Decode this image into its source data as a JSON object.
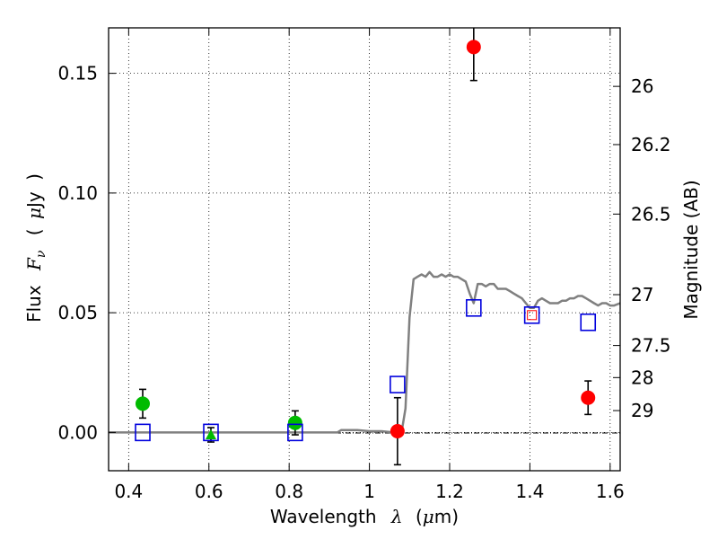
{
  "chart_data": {
    "type": "scatter",
    "xlabel_parts": [
      "Wavelength",
      "λ",
      "(",
      "μ",
      "m)"
    ],
    "ylabel_parts": [
      "Flux",
      "F",
      "ν",
      "(",
      "μ",
      "Jy",
      ")"
    ],
    "y2label": "Magnitude (AB)",
    "xlim": [
      0.35,
      1.625
    ],
    "ylim": [
      -0.016,
      0.169
    ],
    "grid": true,
    "x_ticks": [
      {
        "value": 0.4,
        "label": "0.4"
      },
      {
        "value": 0.6,
        "label": "0.6"
      },
      {
        "value": 0.8,
        "label": "0.8"
      },
      {
        "value": 1.0,
        "label": "1"
      },
      {
        "value": 1.2,
        "label": "1.2"
      },
      {
        "value": 1.4,
        "label": "1.4"
      },
      {
        "value": 1.6,
        "label": "1.6"
      }
    ],
    "y_ticks": [
      {
        "value": 0.0,
        "label": "0.00"
      },
      {
        "value": 0.05,
        "label": "0.05"
      },
      {
        "value": 0.1,
        "label": "0.10"
      },
      {
        "value": 0.15,
        "label": "0.15"
      }
    ],
    "y2_ticks": [
      {
        "mag": 26,
        "label": "26"
      },
      {
        "mag": 26.2,
        "label": "26.2"
      },
      {
        "mag": 26.5,
        "label": "26.5"
      },
      {
        "mag": 27,
        "label": "27"
      },
      {
        "mag": 27.5,
        "label": "27.5"
      },
      {
        "mag": 28,
        "label": "28"
      },
      {
        "mag": 29,
        "label": "29"
      }
    ],
    "model_sed": {
      "color": "#808080",
      "x": [
        0.35,
        0.5,
        0.6,
        0.7,
        0.8,
        0.9,
        0.92,
        0.93,
        0.95,
        0.97,
        1.0,
        1.03,
        1.06,
        1.08,
        1.09,
        1.1,
        1.11,
        1.12,
        1.13,
        1.14,
        1.15,
        1.16,
        1.17,
        1.18,
        1.19,
        1.2,
        1.21,
        1.22,
        1.23,
        1.24,
        1.25,
        1.26,
        1.27,
        1.28,
        1.29,
        1.3,
        1.31,
        1.32,
        1.33,
        1.34,
        1.35,
        1.36,
        1.37,
        1.38,
        1.39,
        1.4,
        1.41,
        1.42,
        1.43,
        1.44,
        1.45,
        1.46,
        1.47,
        1.48,
        1.49,
        1.5,
        1.51,
        1.52,
        1.53,
        1.54,
        1.55,
        1.56,
        1.57,
        1.58,
        1.59,
        1.6,
        1.61,
        1.625
      ],
      "y": [
        0.0,
        0.0,
        0.0,
        0.0,
        0.0,
        0.0,
        0.0,
        0.001,
        0.001,
        0.001,
        0.0005,
        0.0005,
        0.0,
        0.0,
        0.01,
        0.048,
        0.064,
        0.065,
        0.066,
        0.065,
        0.067,
        0.065,
        0.065,
        0.066,
        0.065,
        0.066,
        0.065,
        0.065,
        0.064,
        0.063,
        0.058,
        0.054,
        0.062,
        0.062,
        0.061,
        0.062,
        0.062,
        0.06,
        0.06,
        0.06,
        0.059,
        0.058,
        0.057,
        0.056,
        0.054,
        0.052,
        0.052,
        0.055,
        0.056,
        0.055,
        0.054,
        0.054,
        0.054,
        0.055,
        0.055,
        0.056,
        0.056,
        0.057,
        0.057,
        0.056,
        0.055,
        0.054,
        0.053,
        0.054,
        0.054,
        0.053,
        0.053,
        0.054
      ]
    },
    "series": [
      {
        "marker": "circle",
        "color": "#00bb00",
        "points": [
          {
            "x": 0.435,
            "y": 0.012,
            "yerr": 0.006
          },
          {
            "x": 0.815,
            "y": 0.004,
            "yerr": 0.005
          }
        ]
      },
      {
        "marker": "triangle",
        "color": "#00bb00",
        "points": [
          {
            "x": 0.605,
            "y": -0.001,
            "yerr": 0.003
          }
        ]
      },
      {
        "marker": "circle",
        "color": "#ff0000",
        "points": [
          {
            "x": 1.07,
            "y": 0.0005,
            "yerr": 0.014
          },
          {
            "x": 1.26,
            "y": 0.161,
            "yerr": 0.014
          },
          {
            "x": 1.545,
            "y": 0.0145,
            "yerr": 0.007
          }
        ]
      },
      {
        "marker": "square",
        "color": "#0000dd",
        "points": [
          {
            "x": 0.435,
            "y": 0.0
          },
          {
            "x": 0.605,
            "y": 0.0
          },
          {
            "x": 0.815,
            "y": 0.0
          },
          {
            "x": 1.07,
            "y": 0.02
          },
          {
            "x": 1.26,
            "y": 0.052
          },
          {
            "x": 1.405,
            "y": 0.049
          },
          {
            "x": 1.545,
            "y": 0.046
          }
        ]
      },
      {
        "marker": "small-square",
        "color": "#ff0000",
        "points": [
          {
            "x": 1.405,
            "y": 0.049
          }
        ]
      }
    ]
  }
}
